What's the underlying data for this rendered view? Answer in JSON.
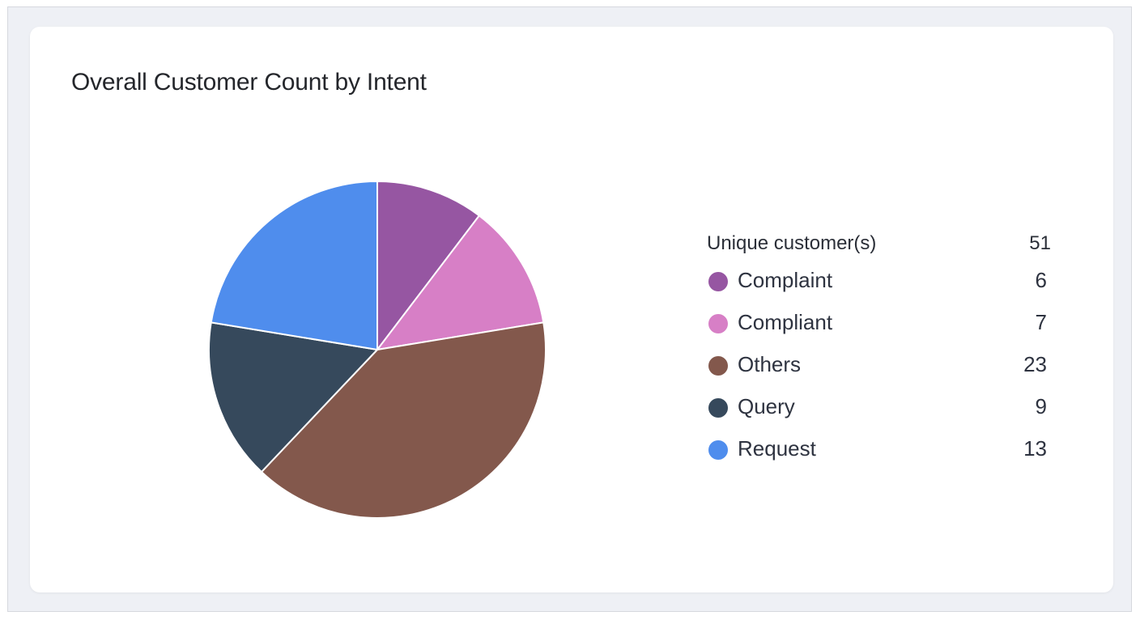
{
  "title": "Overall Customer Count by Intent",
  "legend": {
    "header_label": "Unique customer(s)",
    "header_value": "51"
  },
  "chart_data": {
    "type": "pie",
    "title": "Overall Customer Count by Intent",
    "total_label": "Unique customer(s)",
    "total": 51,
    "slices": [
      {
        "label": "Complaint",
        "value": 6,
        "color": "#9656a2"
      },
      {
        "label": "Compliant",
        "value": 7,
        "color": "#d77fc6"
      },
      {
        "label": "Others",
        "value": 23,
        "color": "#83584c"
      },
      {
        "label": "Query",
        "value": 9,
        "color": "#36495c"
      },
      {
        "label": "Request",
        "value": 13,
        "color": "#4f8ded"
      }
    ],
    "legend_position": "right"
  }
}
